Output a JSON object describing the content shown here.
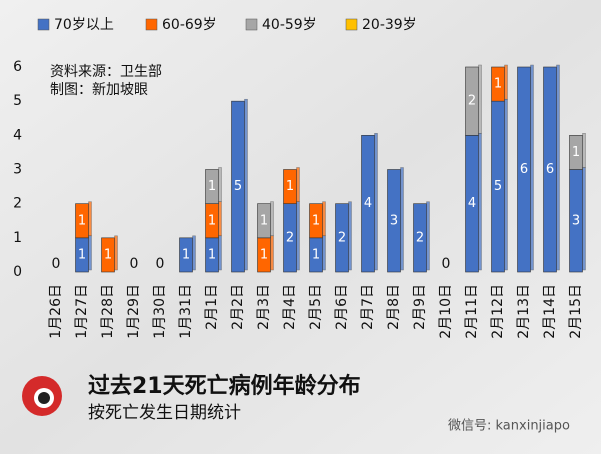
{
  "chart_data": {
    "type": "bar",
    "stacked": true,
    "title": "过去21天死亡病例年龄分布",
    "subtitle": "按死亡发生日期统计",
    "annotations": [
      "资料来源：卫生部",
      "制图：新加坡眼",
      "微信号: kanxinjiapo"
    ],
    "categories": [
      "1月26日",
      "1月27日",
      "1月28日",
      "1月29日",
      "1月30日",
      "1月31日",
      "2月1日",
      "2月2日",
      "2月3日",
      "2月4日",
      "2月5日",
      "2月6日",
      "2月7日",
      "2月8日",
      "2月9日",
      "2月10日",
      "2月11日",
      "2月12日",
      "2月13日",
      "2月14日",
      "2月15日"
    ],
    "series": [
      {
        "name": "70岁以上",
        "color": "#4472c4",
        "values": [
          0,
          1,
          0,
          0,
          0,
          1,
          1,
          5,
          0,
          2,
          1,
          2,
          4,
          3,
          2,
          0,
          4,
          5,
          6,
          6,
          3
        ]
      },
      {
        "name": "60-69岁",
        "color": "#ff6600",
        "values": [
          0,
          1,
          1,
          0,
          0,
          0,
          1,
          0,
          1,
          1,
          1,
          0,
          0,
          0,
          0,
          0,
          0,
          1,
          0,
          0,
          0
        ]
      },
      {
        "name": "40-59岁",
        "color": "#a6a6a6",
        "values": [
          0,
          0,
          0,
          0,
          0,
          0,
          1,
          0,
          1,
          0,
          0,
          0,
          0,
          0,
          0,
          0,
          2,
          0,
          0,
          0,
          1
        ]
      },
      {
        "name": "20-39岁",
        "color": "#ffc000",
        "values": [
          0,
          0,
          0,
          0,
          0,
          0,
          0,
          0,
          0,
          0,
          0,
          0,
          0,
          0,
          0,
          0,
          0,
          0,
          0,
          0,
          0
        ]
      }
    ],
    "ylim": [
      0,
      6
    ],
    "yticks": [
      0,
      1,
      2,
      3,
      4,
      5,
      6
    ],
    "grid": false
  }
}
